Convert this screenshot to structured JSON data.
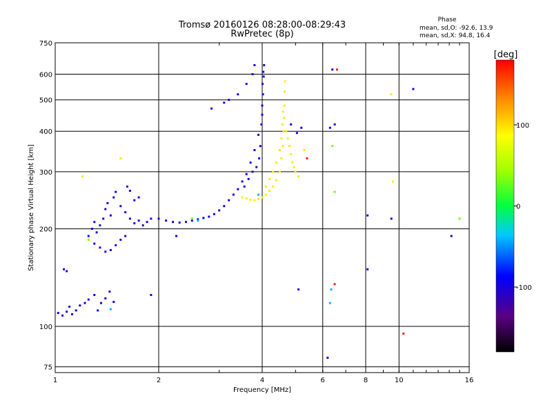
{
  "chart_data": {
    "type": "scatter",
    "title": "Tromsø 20160126 08:28:00-08:29:43",
    "subtitle": "RwPretec (8p)",
    "xlabel": "Frequency [MHz]",
    "ylabel": "Stationary phase Virtual Height [km]",
    "xscale": "log",
    "yscale": "log",
    "xlim": [
      1,
      16
    ],
    "ylim": [
      72,
      750
    ],
    "x_ticks": [
      1,
      2,
      4,
      6,
      8,
      10,
      16
    ],
    "x_tick_labels": [
      "1",
      "2",
      "4",
      "6",
      "8",
      "10",
      "16"
    ],
    "y_ticks": [
      75,
      100,
      200,
      300,
      400,
      500,
      600,
      750
    ],
    "y_tick_labels": [
      "75",
      "100",
      "200",
      "300",
      "400",
      "500",
      "600",
      "750"
    ],
    "grid": true,
    "phase_info": {
      "heading": "Phase",
      "line_o": "mean, sd,O: -92.6, 13.9",
      "line_x": "mean, sd,X: 94.8, 16.4"
    },
    "colorbar": {
      "label": "[deg]",
      "range": [
        -180,
        180
      ],
      "ticks": [
        100,
        0,
        -100
      ],
      "tick_labels": [
        "100",
        "0",
        "-100"
      ]
    },
    "series": [
      {
        "key": "o_trace_blue",
        "phase_deg": -95,
        "points": [
          [
            1.02,
            110
          ],
          [
            1.05,
            108
          ],
          [
            1.08,
            111
          ],
          [
            1.1,
            115
          ],
          [
            1.12,
            109
          ],
          [
            1.15,
            112
          ],
          [
            1.18,
            116
          ],
          [
            1.22,
            118
          ],
          [
            1.25,
            121
          ],
          [
            1.3,
            125
          ],
          [
            1.33,
            112
          ],
          [
            1.36,
            118
          ],
          [
            1.4,
            122
          ],
          [
            1.44,
            128
          ],
          [
            1.48,
            119
          ],
          [
            1.06,
            150
          ],
          [
            1.08,
            148
          ],
          [
            1.25,
            190
          ],
          [
            1.28,
            200
          ],
          [
            1.3,
            210
          ],
          [
            1.32,
            195
          ],
          [
            1.35,
            205
          ],
          [
            1.38,
            215
          ],
          [
            1.4,
            230
          ],
          [
            1.42,
            240
          ],
          [
            1.45,
            220
          ],
          [
            1.48,
            250
          ],
          [
            1.5,
            260
          ],
          [
            1.55,
            235
          ],
          [
            1.6,
            225
          ],
          [
            1.65,
            215
          ],
          [
            1.7,
            208
          ],
          [
            1.75,
            212
          ],
          [
            1.8,
            205
          ],
          [
            1.85,
            210
          ],
          [
            1.9,
            215
          ],
          [
            1.3,
            180
          ],
          [
            1.35,
            175
          ],
          [
            1.4,
            170
          ],
          [
            1.45,
            172
          ],
          [
            1.5,
            178
          ],
          [
            1.55,
            185
          ],
          [
            1.6,
            190
          ],
          [
            1.62,
            270
          ],
          [
            1.65,
            262
          ],
          [
            1.7,
            245
          ],
          [
            1.75,
            250
          ],
          [
            2.0,
            215
          ],
          [
            2.1,
            212
          ],
          [
            2.2,
            210
          ],
          [
            2.3,
            209
          ],
          [
            2.4,
            210
          ],
          [
            2.5,
            212
          ],
          [
            2.6,
            214
          ],
          [
            2.7,
            216
          ],
          [
            2.8,
            218
          ],
          [
            2.9,
            222
          ],
          [
            3.0,
            228
          ],
          [
            3.1,
            235
          ],
          [
            3.2,
            245
          ],
          [
            3.3,
            255
          ],
          [
            3.4,
            265
          ],
          [
            3.5,
            280
          ],
          [
            3.6,
            295
          ],
          [
            3.7,
            320
          ],
          [
            3.8,
            350
          ],
          [
            3.9,
            390
          ],
          [
            4.0,
            450
          ],
          [
            4.02,
            520
          ],
          [
            4.04,
            590
          ],
          [
            4.05,
            640
          ],
          [
            3.95,
            360
          ],
          [
            3.98,
            420
          ],
          [
            4.0,
            480
          ],
          [
            4.01,
            560
          ],
          [
            4.03,
            610
          ],
          [
            3.92,
            330
          ],
          [
            3.85,
            310
          ],
          [
            3.75,
            300
          ],
          [
            3.65,
            285
          ],
          [
            3.55,
            270
          ],
          [
            2.85,
            470
          ],
          [
            3.1,
            490
          ],
          [
            3.2,
            500
          ],
          [
            3.4,
            520
          ],
          [
            3.6,
            560
          ],
          [
            3.75,
            600
          ],
          [
            3.8,
            640
          ],
          [
            4.85,
            420
          ],
          [
            5.2,
            410
          ],
          [
            5.05,
            395
          ],
          [
            6.3,
            410
          ],
          [
            6.5,
            420
          ],
          [
            8.1,
            220
          ],
          [
            8.1,
            150
          ],
          [
            9.5,
            215
          ],
          [
            11.0,
            540
          ],
          [
            14.2,
            190
          ],
          [
            2.25,
            190
          ],
          [
            1.9,
            125
          ],
          [
            5.1,
            130
          ],
          [
            6.2,
            80
          ],
          [
            6.4,
            620
          ]
        ]
      },
      {
        "key": "x_trace_yellow",
        "phase_deg": 95,
        "points": [
          [
            3.5,
            250
          ],
          [
            3.6,
            248
          ],
          [
            3.7,
            246
          ],
          [
            3.8,
            245
          ],
          [
            3.9,
            247
          ],
          [
            4.0,
            250
          ],
          [
            4.1,
            255
          ],
          [
            4.2,
            262
          ],
          [
            4.3,
            270
          ],
          [
            4.4,
            282
          ],
          [
            4.5,
            300
          ],
          [
            4.55,
            330
          ],
          [
            4.6,
            360
          ],
          [
            4.62,
            400
          ],
          [
            4.63,
            440
          ],
          [
            4.64,
            480
          ],
          [
            4.65,
            530
          ],
          [
            4.66,
            570
          ],
          [
            4.1,
            270
          ],
          [
            4.2,
            285
          ],
          [
            4.3,
            300
          ],
          [
            4.4,
            320
          ],
          [
            4.5,
            350
          ],
          [
            4.55,
            380
          ],
          [
            4.58,
            420
          ],
          [
            4.6,
            460
          ],
          [
            4.7,
            400
          ],
          [
            4.8,
            360
          ],
          [
            4.9,
            320
          ],
          [
            5.0,
            300
          ],
          [
            5.1,
            290
          ],
          [
            4.75,
            380
          ],
          [
            4.85,
            340
          ],
          [
            4.95,
            310
          ],
          [
            5.3,
            350
          ],
          [
            9.5,
            520
          ],
          [
            9.6,
            280
          ],
          [
            1.55,
            330
          ],
          [
            1.2,
            290
          ]
        ]
      },
      {
        "key": "other_echoes",
        "phase_deg": 30,
        "points": [
          [
            6.5,
            260
          ],
          [
            6.4,
            360
          ],
          [
            15.0,
            215
          ],
          [
            1.25,
            185
          ],
          [
            2.5,
            215
          ]
        ]
      },
      {
        "key": "red_echoes",
        "phase_deg": 170,
        "points": [
          [
            6.6,
            620
          ],
          [
            6.5,
            135
          ],
          [
            10.3,
            95
          ],
          [
            5.4,
            330
          ]
        ]
      },
      {
        "key": "cyan_echoes",
        "phase_deg": -40,
        "points": [
          [
            6.3,
            118
          ],
          [
            6.35,
            130
          ],
          [
            1.45,
            113
          ],
          [
            3.9,
            255
          ],
          [
            2.6,
            212
          ]
        ]
      }
    ]
  }
}
